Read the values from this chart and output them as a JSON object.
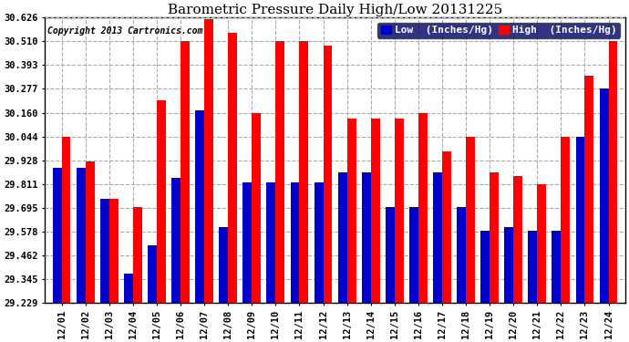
{
  "title": "Barometric Pressure Daily High/Low 20131225",
  "copyright": "Copyright 2013 Cartronics.com",
  "legend_low": "Low  (Inches/Hg)",
  "legend_high": "High  (Inches/Hg)",
  "dates": [
    "12/01",
    "12/02",
    "12/03",
    "12/04",
    "12/05",
    "12/06",
    "12/07",
    "12/08",
    "12/09",
    "12/10",
    "12/11",
    "12/12",
    "12/13",
    "12/14",
    "12/15",
    "12/16",
    "12/17",
    "12/18",
    "12/19",
    "12/20",
    "12/21",
    "12/22",
    "12/23",
    "12/24"
  ],
  "low_values": [
    29.89,
    29.89,
    29.74,
    29.37,
    29.51,
    29.84,
    30.17,
    29.6,
    29.82,
    29.82,
    29.82,
    29.82,
    29.87,
    29.87,
    29.7,
    29.7,
    29.87,
    29.7,
    29.58,
    29.6,
    29.58,
    29.58,
    30.04,
    30.28
  ],
  "high_values": [
    30.04,
    29.92,
    29.74,
    29.7,
    30.22,
    30.51,
    30.62,
    30.55,
    30.16,
    30.51,
    30.51,
    30.49,
    30.13,
    30.13,
    30.13,
    30.16,
    29.97,
    30.04,
    29.87,
    29.85,
    29.81,
    30.04,
    30.34,
    30.51
  ],
  "ylim_min": 29.229,
  "ylim_max": 30.626,
  "yticks": [
    29.229,
    29.345,
    29.462,
    29.578,
    29.695,
    29.811,
    29.928,
    30.044,
    30.16,
    30.277,
    30.393,
    30.51,
    30.626
  ],
  "low_color": "#0000cc",
  "high_color": "#ff0000",
  "bg_color": "#ffffff",
  "grid_color": "#aaaaaa",
  "title_fontsize": 11,
  "copyright_fontsize": 7,
  "tick_fontsize": 7.5,
  "legend_fontsize": 8,
  "bar_width": 0.38
}
